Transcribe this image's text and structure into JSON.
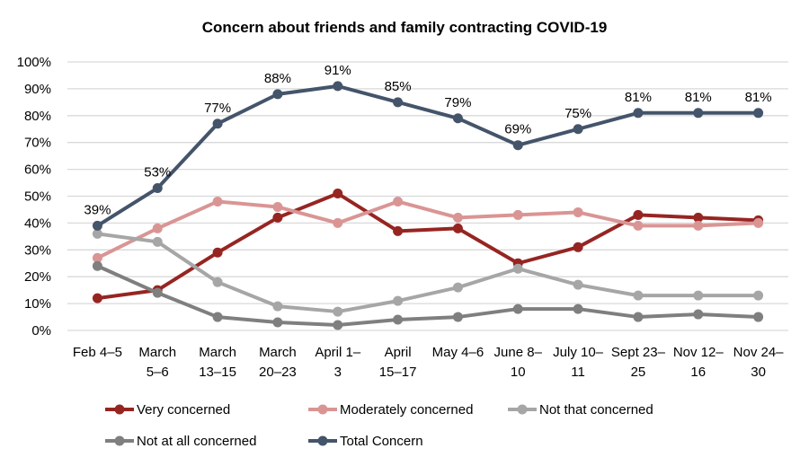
{
  "chart_data": {
    "type": "line",
    "title": "Concern about friends and family contracting COVID-19",
    "xlabel": "",
    "ylabel": "",
    "ylim": [
      0,
      100
    ],
    "y_ticks": [
      "0%",
      "10%",
      "20%",
      "30%",
      "40%",
      "50%",
      "60%",
      "70%",
      "80%",
      "90%",
      "100%"
    ],
    "grid": true,
    "legend_position": "bottom",
    "categories": [
      [
        "Feb 4–5",
        ""
      ],
      [
        "March",
        "5–6"
      ],
      [
        "March",
        "13–15"
      ],
      [
        "March",
        "20–23"
      ],
      [
        "April 1–",
        "3"
      ],
      [
        "April",
        "15–17"
      ],
      [
        "May 4–6",
        ""
      ],
      [
        "June 8–",
        "10"
      ],
      [
        "July 10–",
        "11"
      ],
      [
        "Sept 23–",
        "25"
      ],
      [
        "Nov 12–",
        "16"
      ],
      [
        "Nov 24–",
        "30"
      ]
    ],
    "series": [
      {
        "name": "Very concerned",
        "color": "#962522",
        "values": [
          12,
          15,
          29,
          42,
          51,
          37,
          38,
          25,
          31,
          43,
          42,
          41
        ],
        "labels": false
      },
      {
        "name": "Moderately concerned",
        "color": "#d99594",
        "values": [
          27,
          38,
          48,
          46,
          40,
          48,
          42,
          43,
          44,
          39,
          39,
          40
        ],
        "labels": false
      },
      {
        "name": "Not that concerned",
        "color": "#a6a6a6",
        "values": [
          36,
          33,
          18,
          9,
          7,
          11,
          16,
          23,
          17,
          13,
          13,
          13
        ],
        "labels": false
      },
      {
        "name": "Not at all concerned",
        "color": "#7f7f7f",
        "values": [
          24,
          14,
          5,
          3,
          2,
          4,
          5,
          8,
          8,
          5,
          6,
          5
        ],
        "labels": false
      },
      {
        "name": "Total Concern",
        "color": "#44546a",
        "values": [
          39,
          53,
          77,
          88,
          91,
          85,
          79,
          69,
          75,
          81,
          81,
          81
        ],
        "labels": true
      }
    ],
    "data_labels": [
      "39%",
      "53%",
      "77%",
      "88%",
      "91%",
      "85%",
      "79%",
      "69%",
      "75%",
      "81%",
      "81%",
      "81%"
    ]
  }
}
